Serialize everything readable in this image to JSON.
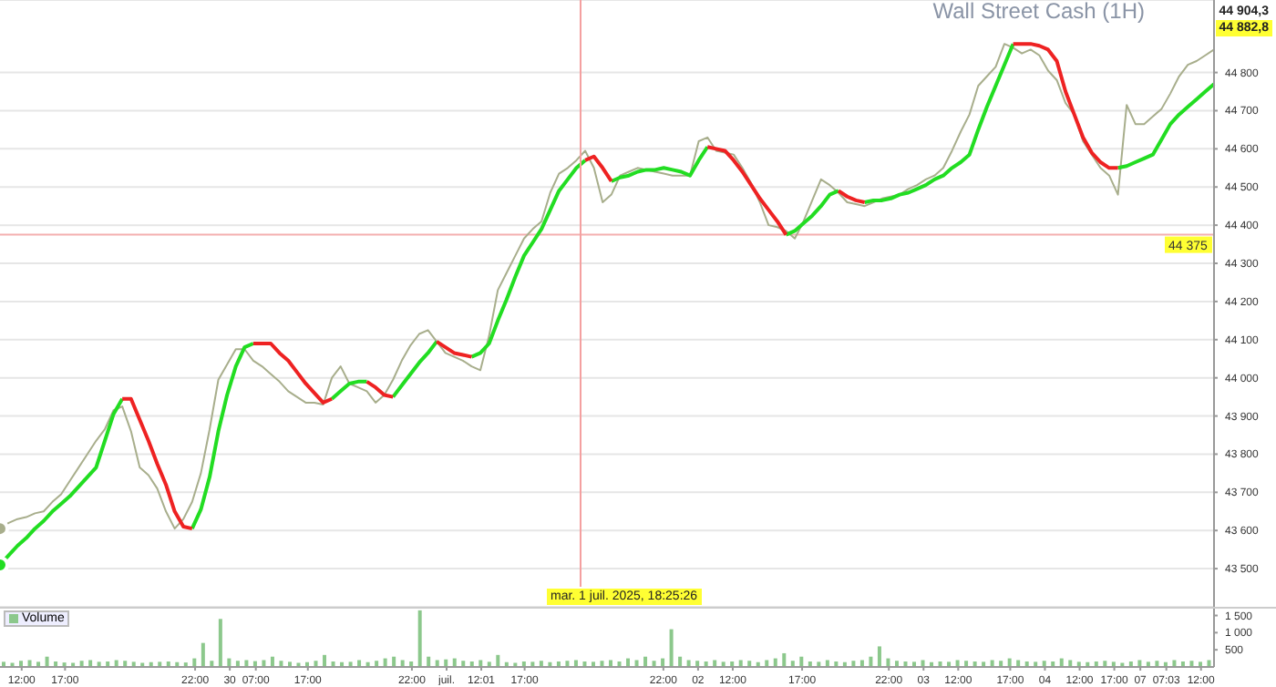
{
  "chart_data": [
    {
      "type": "line",
      "title": "Wall Street Cash (1H)",
      "categories": [
        null,
        null,
        null,
        null,
        null,
        null,
        null,
        null,
        null,
        null,
        null,
        null,
        null,
        null,
        null,
        null,
        null,
        null,
        null,
        null,
        null,
        null,
        null,
        null,
        null,
        null,
        null,
        null,
        null,
        null,
        null,
        null,
        null,
        null,
        null,
        null,
        null,
        null,
        null,
        null,
        null,
        null,
        null,
        null,
        null,
        null,
        null,
        null,
        null,
        null,
        null,
        null,
        null,
        null,
        null,
        null,
        null,
        null,
        null,
        null,
        null,
        null,
        null,
        null,
        null,
        null,
        null,
        null,
        null,
        null,
        null,
        null,
        null,
        null,
        null,
        null,
        null,
        null,
        null,
        null,
        null,
        null,
        null,
        null,
        null,
        null,
        null,
        null,
        null,
        null,
        null,
        null,
        null,
        null,
        null,
        null,
        null,
        null,
        null,
        null,
        null,
        null,
        null,
        null,
        null,
        null,
        null,
        null,
        null,
        null,
        null,
        null,
        null,
        null,
        null,
        null,
        null,
        null,
        null,
        null,
        null,
        null,
        null,
        null,
        null,
        null,
        null,
        null,
        null,
        null,
        null,
        null,
        null,
        null,
        null,
        null,
        null,
        null,
        null,
        null
      ],
      "ylim": [
        43400,
        44990
      ],
      "yticks": [
        {
          "value": 43500,
          "label": "43 500"
        },
        {
          "value": 43600,
          "label": "43 600"
        },
        {
          "value": 43700,
          "label": "43 700"
        },
        {
          "value": 43800,
          "label": "43 800"
        },
        {
          "value": 43900,
          "label": "43 900"
        },
        {
          "value": 44000,
          "label": "44 000"
        },
        {
          "value": 44100,
          "label": "44 100"
        },
        {
          "value": 44200,
          "label": "44 200"
        },
        {
          "value": 44300,
          "label": "44 300"
        },
        {
          "value": 44400,
          "label": "44 400"
        },
        {
          "value": 44500,
          "label": "44 500"
        },
        {
          "value": 44600,
          "label": "44 600"
        },
        {
          "value": 44700,
          "label": "44 700"
        },
        {
          "value": 44800,
          "label": "44 800"
        }
      ],
      "grid": "y",
      "tick_labels": "y",
      "marker": "none",
      "line_style": "solid",
      "ref_lines": [
        {
          "axis": "y",
          "value": 44375,
          "label": "44 375",
          "color": "#f4b0b0"
        }
      ],
      "annotations": [
        "44 904,3",
        "44 882,8",
        "mar. 1 juil. 2025, 18:25:26"
      ],
      "series": [
        {
          "color": "#a8ae8c",
          "values": [
            43605,
            43620,
            43630,
            43635,
            43645,
            43650,
            43675,
            43695,
            43730,
            43765,
            43800,
            43835,
            43865,
            43915,
            43925,
            43860,
            43765,
            43745,
            43710,
            43650,
            43605,
            43630,
            43675,
            43750,
            43865,
            43995,
            44035,
            44075,
            44075,
            44045,
            44030,
            44010,
            43990,
            43965,
            43950,
            43935,
            43935,
            43930,
            44000,
            44030,
            43985,
            43975,
            43965,
            43935,
            43955,
            43995,
            44045,
            44085,
            44115,
            44125,
            44095,
            44065,
            44055,
            44045,
            44030,
            44020,
            44110,
            44230,
            44275,
            44320,
            44365,
            44390,
            44410,
            44485,
            44535,
            44550,
            44570,
            44595,
            44550,
            44460,
            44480,
            44530,
            44540,
            44550,
            44545,
            44540,
            44535,
            44530,
            44530,
            44530,
            44620,
            44630,
            44595,
            44590,
            44585,
            44550,
            44510,
            44460,
            44400,
            44395,
            44385,
            44365,
            44410,
            44465,
            44520,
            44505,
            44485,
            44460,
            44455,
            44450,
            44460,
            44470,
            44475,
            44480,
            44495,
            44505,
            44520,
            44530,
            44550,
            44595,
            44645,
            44690,
            44765,
            44790,
            44815,
            44875,
            44865,
            44850,
            44860,
            44845,
            44805,
            44780,
            44720,
            44690,
            44620,
            44585,
            44550,
            44530,
            44480,
            44715,
            44665,
            44665,
            44685,
            44705,
            44745,
            44790,
            44820,
            44830,
            44845,
            44860
          ]
        },
        {
          "color": "#22dd22",
          "values": [
            43510,
            43535,
            43560,
            43580,
            43605,
            43625,
            43650,
            43670,
            43690,
            43715,
            43740,
            43765,
            43835,
            43905,
            43945,
            null,
            null,
            null,
            null,
            null,
            null,
            null,
            43605,
            43655,
            43740,
            43860,
            43955,
            44030,
            44080,
            44090,
            null,
            null,
            null,
            null,
            null,
            null,
            null,
            null,
            43945,
            43965,
            43985,
            43990,
            43990,
            null,
            null,
            43950,
            43980,
            44010,
            44040,
            44065,
            44095,
            null,
            null,
            null,
            44055,
            44065,
            44090,
            44150,
            44205,
            44265,
            44320,
            44355,
            44390,
            44440,
            44490,
            44520,
            44550,
            44570,
            null,
            null,
            44515,
            44525,
            44530,
            44540,
            44545,
            44545,
            44550,
            44545,
            44540,
            44530,
            44570,
            44605,
            null,
            null,
            null,
            null,
            null,
            null,
            null,
            null,
            44375,
            44385,
            44405,
            44425,
            44450,
            44480,
            44490,
            null,
            null,
            44460,
            44465,
            44465,
            44470,
            44480,
            44485,
            44495,
            44505,
            44520,
            44530,
            44550,
            44565,
            44585,
            44650,
            44710,
            44765,
            44820,
            44875,
            null,
            null,
            null,
            null,
            null,
            null,
            null,
            null,
            null,
            null,
            null,
            44550,
            44555,
            44565,
            44575,
            44585,
            44625,
            44665,
            44690,
            44710,
            44730,
            44750,
            44770
          ]
        },
        {
          "color": "#ee2222",
          "values": [
            null,
            null,
            null,
            null,
            null,
            null,
            null,
            null,
            null,
            null,
            null,
            null,
            null,
            null,
            43945,
            43945,
            43890,
            43835,
            43775,
            43720,
            43650,
            43610,
            43605,
            null,
            null,
            null,
            null,
            null,
            null,
            44090,
            44090,
            44090,
            44065,
            44045,
            44015,
            43985,
            43960,
            43935,
            43945,
            null,
            null,
            null,
            43990,
            43975,
            43955,
            43950,
            null,
            null,
            null,
            null,
            44095,
            44080,
            44065,
            44060,
            44055,
            null,
            null,
            null,
            null,
            null,
            null,
            null,
            null,
            null,
            null,
            null,
            null,
            44570,
            44580,
            44550,
            44515,
            null,
            null,
            null,
            null,
            null,
            null,
            null,
            null,
            null,
            null,
            44605,
            44600,
            44595,
            44570,
            44540,
            44505,
            44470,
            44440,
            44410,
            44375,
            null,
            null,
            null,
            null,
            null,
            44490,
            44475,
            44465,
            44460,
            null,
            null,
            null,
            null,
            null,
            null,
            null,
            null,
            null,
            null,
            null,
            null,
            null,
            null,
            null,
            null,
            44875,
            44875,
            44875,
            44870,
            44860,
            44830,
            44750,
            44690,
            44630,
            44590,
            44565,
            44550,
            44550,
            null,
            null,
            null,
            null,
            null,
            null,
            null,
            null,
            null,
            null,
            null
          ]
        }
      ]
    },
    {
      "type": "bar",
      "categories": [
        null,
        null,
        "12:00",
        null,
        null,
        null,
        null,
        "17:00",
        null,
        null,
        null,
        null,
        null,
        null,
        null,
        null,
        null,
        null,
        null,
        null,
        null,
        null,
        "22:00",
        null,
        null,
        null,
        "30",
        null,
        null,
        "07:00",
        null,
        null,
        null,
        null,
        null,
        "17:00",
        null,
        null,
        null,
        null,
        null,
        null,
        null,
        null,
        null,
        null,
        null,
        "22:00",
        null,
        null,
        null,
        "juil.",
        null,
        null,
        null,
        "12:01",
        null,
        null,
        null,
        null,
        "17:00",
        null,
        null,
        null,
        null,
        null,
        null,
        null,
        null,
        null,
        null,
        null,
        null,
        null,
        null,
        null,
        "22:00",
        null,
        null,
        null,
        "02",
        null,
        null,
        null,
        "12:00",
        null,
        null,
        null,
        null,
        null,
        null,
        null,
        "17:00",
        null,
        null,
        null,
        null,
        null,
        null,
        null,
        null,
        null,
        "22:00",
        null,
        null,
        null,
        "03",
        null,
        null,
        null,
        "12:00",
        null,
        null,
        null,
        null,
        null,
        "17:00",
        null,
        null,
        null,
        "04",
        null,
        null,
        null,
        "12:00",
        null,
        null,
        null,
        "17:00",
        null,
        null,
        "07",
        null,
        null,
        "07:03",
        null,
        null,
        null,
        "12:00",
        null
      ],
      "ylim": [
        0,
        1700
      ],
      "yticks": [
        500,
        {
          "value": 1000,
          "label": "1 000"
        },
        {
          "value": 1500,
          "label": "1 500"
        }
      ],
      "legend": "top left",
      "series": [
        {
          "name": "Volume",
          "color": "#8cc88c",
          "values": [
            150,
            120,
            180,
            200,
            150,
            300,
            160,
            130,
            120,
            180,
            200,
            150,
            160,
            200,
            180,
            150,
            120,
            140,
            150,
            160,
            140,
            130,
            250,
            700,
            180,
            1400,
            250,
            180,
            200,
            170,
            200,
            300,
            180,
            150,
            120,
            140,
            180,
            350,
            160,
            140,
            150,
            200,
            140,
            180,
            250,
            300,
            200,
            160,
            1650,
            300,
            200,
            220,
            250,
            180,
            160,
            200,
            150,
            350,
            140,
            120,
            160,
            150,
            180,
            140,
            160,
            180,
            200,
            160,
            150,
            180,
            200,
            160,
            250,
            200,
            300,
            180,
            250,
            1100,
            300,
            200,
            180,
            160,
            200,
            150,
            160,
            200,
            180,
            140,
            200,
            250,
            400,
            180,
            300,
            160,
            150,
            200,
            160,
            140,
            180,
            200,
            300,
            600,
            250,
            180,
            160,
            150,
            200,
            140,
            160,
            150,
            200,
            180,
            160,
            150,
            200,
            180,
            250,
            200,
            160,
            150,
            180,
            160,
            250,
            200,
            150,
            140,
            160,
            180,
            150,
            120,
            160,
            200,
            150,
            180,
            140,
            200,
            160,
            180,
            150,
            200
          ]
        }
      ]
    }
  ]
}
